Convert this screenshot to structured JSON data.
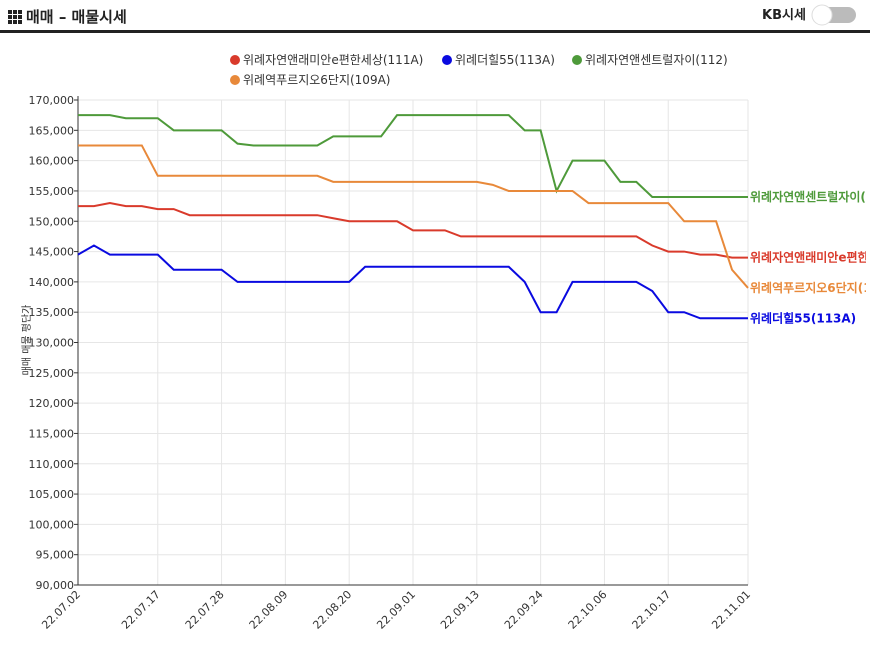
{
  "header": {
    "title": "매매 – 매물시세",
    "toggle_label": "KB시세"
  },
  "chart_data": {
    "type": "line",
    "y_label": "매매 매물 평단가",
    "grid": true,
    "categories": [
      "22.07.02",
      null,
      null,
      null,
      null,
      "22.07.17",
      null,
      null,
      null,
      "22.07.28",
      null,
      null,
      null,
      "22.08.09",
      null,
      null,
      null,
      "22.08.20",
      null,
      null,
      null,
      "22.09.01",
      null,
      null,
      null,
      "22.09.13",
      null,
      null,
      null,
      "22.09.24",
      null,
      null,
      null,
      "22.10.06",
      null,
      null,
      null,
      "22.10.17",
      null,
      null,
      null,
      null,
      "22.11.01"
    ],
    "ylim": [
      90000,
      170000
    ],
    "yticks": [
      {
        "value": 90000,
        "label": "90,000"
      },
      {
        "value": 95000,
        "label": "95,000"
      },
      {
        "value": 100000,
        "label": "100,000"
      },
      {
        "value": 105000,
        "label": "105,000"
      },
      {
        "value": 110000,
        "label": "110,000"
      },
      {
        "value": 115000,
        "label": "115,000"
      },
      {
        "value": 120000,
        "label": "120,000"
      },
      {
        "value": 125000,
        "label": "125,000"
      },
      {
        "value": 130000,
        "label": "130,000"
      },
      {
        "value": 135000,
        "label": "135,000"
      },
      {
        "value": 140000,
        "label": "140,000"
      },
      {
        "value": 145000,
        "label": "145,000"
      },
      {
        "value": 150000,
        "label": "150,000"
      },
      {
        "value": 155000,
        "label": "155,000"
      },
      {
        "value": 160000,
        "label": "160,000"
      },
      {
        "value": 165000,
        "label": "165,000"
      },
      {
        "value": 170000,
        "label": "170,000"
      }
    ],
    "series": [
      {
        "name": "위례자연앤래미안e편한세상(111A)",
        "color": "#d93a2b",
        "values": [
          152500,
          152500,
          153000,
          152500,
          152500,
          152000,
          152000,
          151000,
          151000,
          151000,
          151000,
          151000,
          151000,
          151000,
          151000,
          151000,
          150500,
          150000,
          150000,
          150000,
          150000,
          148500,
          148500,
          148500,
          147500,
          147500,
          147500,
          147500,
          147500,
          147500,
          147500,
          147500,
          147500,
          147500,
          147500,
          147500,
          146000,
          145000,
          145000,
          144500,
          144500,
          144000,
          144000
        ]
      },
      {
        "name": "위례더힐55(113A)",
        "color": "#0a0ae0",
        "values": [
          144500,
          146000,
          144500,
          144500,
          144500,
          144500,
          142000,
          142000,
          142000,
          142000,
          140000,
          140000,
          140000,
          140000,
          140000,
          140000,
          140000,
          140000,
          142500,
          142500,
          142500,
          142500,
          142500,
          142500,
          142500,
          142500,
          142500,
          142500,
          140000,
          135000,
          135000,
          140000,
          140000,
          140000,
          140000,
          140000,
          138500,
          135000,
          135000,
          134000,
          134000,
          134000,
          134000
        ]
      },
      {
        "name": "위례자연앤센트럴자이(112)",
        "color": "#4e9a3a",
        "values": [
          167500,
          167500,
          167500,
          167000,
          167000,
          167000,
          165000,
          165000,
          165000,
          165000,
          162800,
          162500,
          162500,
          162500,
          162500,
          162500,
          164000,
          164000,
          164000,
          164000,
          167500,
          167500,
          167500,
          167500,
          167500,
          167500,
          167500,
          167500,
          165000,
          165000,
          155000,
          160000,
          160000,
          160000,
          156500,
          156500,
          154000,
          154000,
          154000,
          154000,
          154000,
          154000,
          154000
        ]
      },
      {
        "name": "위례역푸르지오6단지(109A)",
        "color": "#e8893a",
        "values": [
          162500,
          162500,
          162500,
          162500,
          162500,
          157500,
          157500,
          157500,
          157500,
          157500,
          157500,
          157500,
          157500,
          157500,
          157500,
          157500,
          156500,
          156500,
          156500,
          156500,
          156500,
          156500,
          156500,
          156500,
          156500,
          156500,
          156000,
          155000,
          155000,
          155000,
          155000,
          155000,
          153000,
          153000,
          153000,
          153000,
          153000,
          153000,
          150000,
          150000,
          150000,
          142000,
          139000
        ]
      }
    ]
  }
}
